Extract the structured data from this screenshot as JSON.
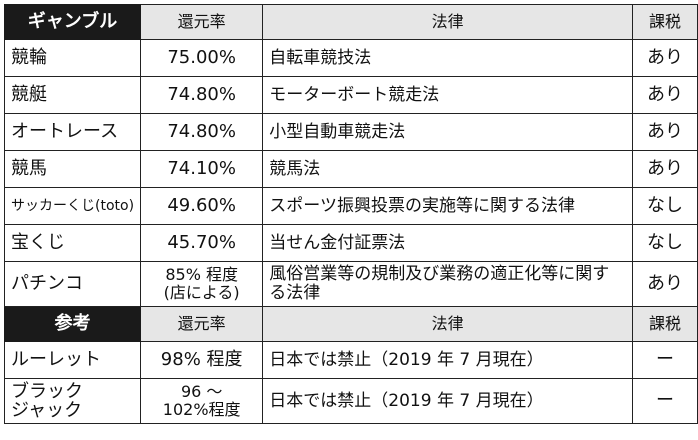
{
  "table1": {
    "headers": [
      "ギャンブル",
      "還元率",
      "法律",
      "課税"
    ],
    "rows": [
      [
        "競輪",
        "75.00%",
        "自転車競技法",
        "あり"
      ],
      [
        "競艇",
        "74.80%",
        "モーターボート競走法",
        "あり"
      ],
      [
        "オートレース",
        "74.80%",
        "小型自動車競走法",
        "あり"
      ],
      [
        "競馬",
        "74.10%",
        "競馬法",
        "あり"
      ],
      [
        "サッカーくじ(toto)",
        "49.60%",
        "スポーツ振興投票の実施等に関する法律",
        "なし"
      ],
      [
        "宝くじ",
        "45.70%",
        "当せん金付証票法",
        "なし"
      ],
      [
        "パチンコ",
        "85% 程度\n(店による)",
        "風俗営業等の規制及び業務の適正化等に関する法律",
        "あり"
      ]
    ]
  },
  "table2": {
    "headers": [
      "参考",
      "還元率",
      "法律",
      "課税"
    ],
    "rows": [
      [
        "ルーレット",
        "98% 程度",
        "日本では禁止（2019 年 7 月現在）",
        "ー"
      ],
      [
        "ブラック\nジャック",
        "96 ～\n102%程度",
        "日本では禁止（2019 年 7 月現在）",
        "ー"
      ]
    ]
  }
}
